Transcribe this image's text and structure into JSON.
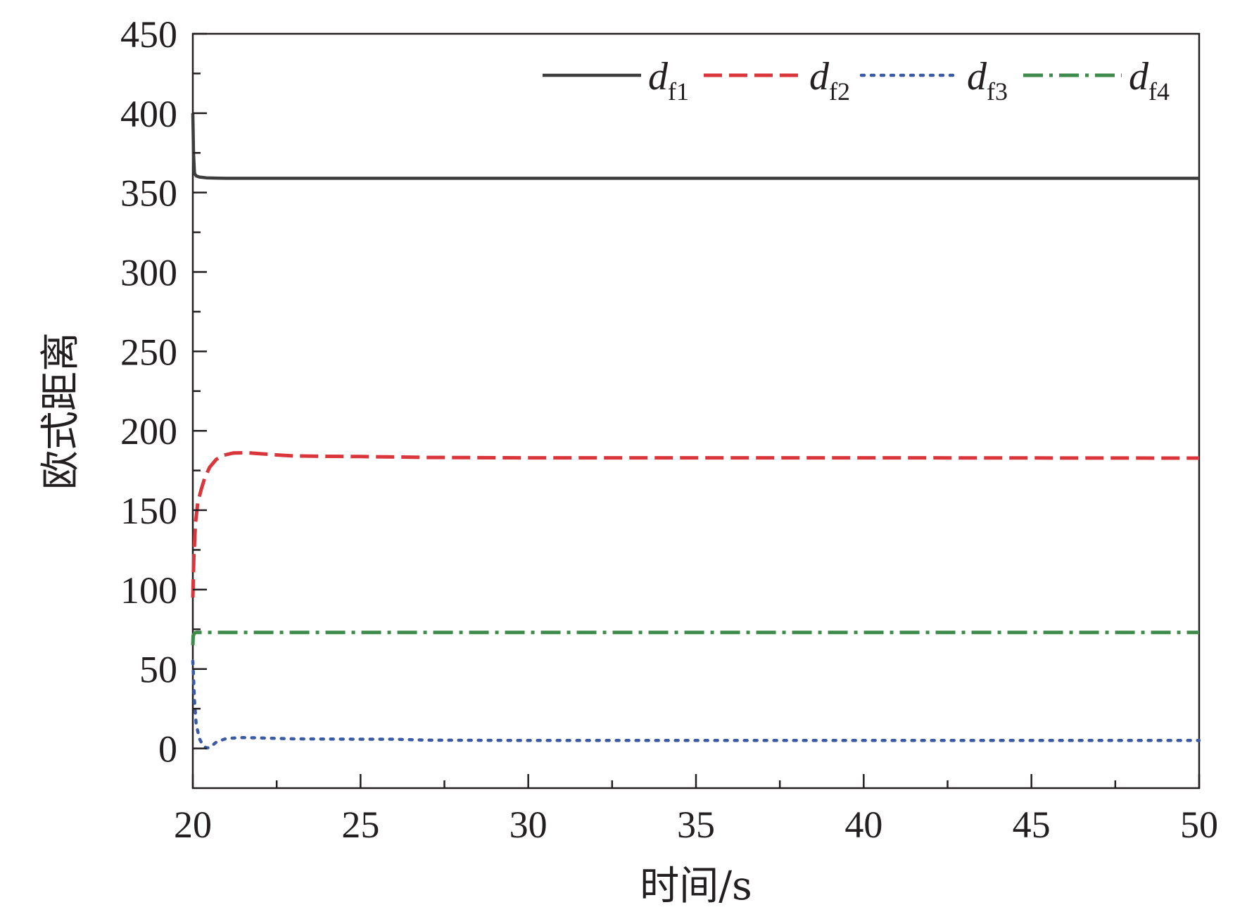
{
  "chart_data": {
    "type": "line",
    "xlabel": "时间/s",
    "ylabel": "欧式距离",
    "xlim": [
      20,
      50
    ],
    "ylim": [
      -25,
      450
    ],
    "xticks": [
      20,
      25,
      30,
      35,
      40,
      45,
      50
    ],
    "yticks": [
      0,
      50,
      100,
      150,
      200,
      250,
      300,
      350,
      400,
      450
    ],
    "grid": false,
    "legend_position": "top",
    "series": [
      {
        "name": "df1",
        "name_main": "d",
        "name_sub": "f1",
        "color": "#3d3d3d",
        "dash": "solid",
        "x": [
          20.0,
          20.02,
          20.05,
          20.1,
          20.2,
          20.4,
          20.7,
          21,
          25,
          30,
          35,
          40,
          45,
          50
        ],
        "y": [
          400,
          375,
          362,
          360.5,
          359.8,
          359.3,
          359.1,
          359,
          359,
          359,
          359,
          359,
          359,
          359
        ]
      },
      {
        "name": "df2",
        "name_main": "d",
        "name_sub": "f2",
        "color": "#d9353b",
        "dash": "dashed",
        "x": [
          20.0,
          20.03,
          20.08,
          20.15,
          20.25,
          20.35,
          20.5,
          20.7,
          20.9,
          21.2,
          21.6,
          22,
          22.5,
          23,
          24,
          25,
          26,
          27,
          30,
          35,
          40,
          45,
          50
        ],
        "y": [
          95,
          120,
          142,
          155,
          163,
          170,
          177,
          182,
          184.5,
          186,
          186.2,
          185.6,
          184.8,
          184.2,
          183.9,
          183.8,
          183.5,
          183.2,
          183,
          183,
          183,
          182.9,
          182.8
        ]
      },
      {
        "name": "df3",
        "name_main": "d",
        "name_sub": "f3",
        "color": "#3a5aa6",
        "dash": "dotted",
        "x": [
          20.0,
          20.05,
          20.1,
          20.2,
          20.3,
          20.4,
          20.5,
          20.7,
          21,
          21.5,
          22,
          23,
          25,
          26,
          27,
          30,
          35,
          40,
          45,
          50
        ],
        "y": [
          55,
          30,
          15,
          6,
          2,
          0.3,
          0.5,
          4,
          6.3,
          6.8,
          6.6,
          6,
          5.8,
          5.8,
          5.2,
          5,
          5,
          5,
          5,
          5
        ]
      },
      {
        "name": "df4",
        "name_main": "d",
        "name_sub": "f4",
        "color": "#3d8a4a",
        "dash": "dashdot",
        "x": [
          20.0,
          20.01,
          20.05,
          20.1,
          25,
          30,
          35,
          40,
          45,
          50
        ],
        "y": [
          65,
          71,
          72.6,
          73,
          73,
          73,
          73,
          73,
          73,
          73
        ]
      }
    ]
  }
}
